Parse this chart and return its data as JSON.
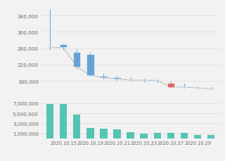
{
  "dates_idx": [
    0,
    1,
    2,
    3,
    4,
    5,
    6,
    7,
    8,
    9,
    10,
    11,
    12
  ],
  "open": [
    265000,
    270000,
    250000,
    245000,
    192000,
    188000,
    184000,
    182000,
    180000,
    175000,
    167000,
    165000,
    163000
  ],
  "high": [
    355000,
    272000,
    258000,
    250000,
    198000,
    192000,
    188000,
    185000,
    184000,
    178000,
    173000,
    167000,
    165000
  ],
  "low": [
    258000,
    258000,
    212000,
    193000,
    185000,
    182000,
    180000,
    179000,
    177000,
    163000,
    163000,
    161000,
    159000
  ],
  "close": [
    262000,
    262000,
    215000,
    194000,
    188000,
    185000,
    182000,
    182000,
    181000,
    165000,
    165000,
    163000,
    161000
  ],
  "candle_colors": [
    "#5b9bd5",
    "#5b9bd5",
    "#5b9bd5",
    "#5b9bd5",
    "#5b9bd5",
    "#5b9bd5",
    "#5b9bd5",
    "#5b9bd5",
    "#5b9bd5",
    "#e05c5c",
    "#5b9bd5",
    "#5b9bd5",
    "#5b9bd5"
  ],
  "volume": [
    6800000,
    6800000,
    4700000,
    2100000,
    2000000,
    1800000,
    1250000,
    1000000,
    1050000,
    1100000,
    1150000,
    680000,
    680000
  ],
  "volume_color": "#3dbfaa",
  "price_yticks": [
    180000,
    220000,
    260000,
    300000,
    340000
  ],
  "volume_yticks": [
    1000000,
    3000000,
    5000000,
    7000000
  ],
  "price_ylim": [
    158000,
    368000
  ],
  "volume_ylim": [
    0,
    9000000
  ],
  "date_tick_positions": [
    0,
    2,
    4,
    6,
    8,
    10,
    12
  ],
  "date_labels_at": [
    1,
    3,
    5,
    7,
    9,
    11
  ],
  "date_label_texts": [
    "2020.10.15",
    "2020.10.19",
    "2020.10.21",
    "2020.10.23",
    "2020.10.27",
    "2020.10.29"
  ],
  "bg_color": "#f2f2f2",
  "grid_color": "#dcdcdc",
  "trend_color": "#aaaaaa",
  "n_candles": 13
}
